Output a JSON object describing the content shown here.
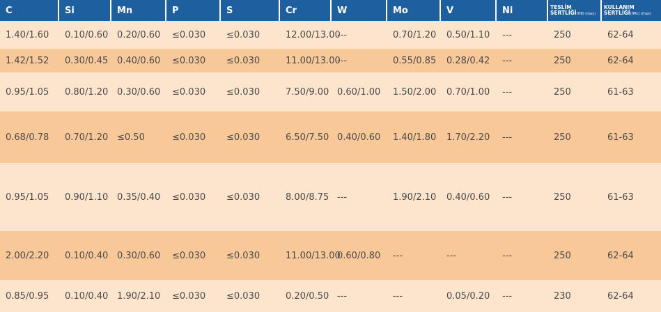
{
  "headers": [
    {
      "label": "C"
    },
    {
      "label": "Si"
    },
    {
      "label": "Mn"
    },
    {
      "label": "P"
    },
    {
      "label": "S"
    },
    {
      "label": "Cr"
    },
    {
      "label": "W"
    },
    {
      "label": "Mo"
    },
    {
      "label": "V"
    },
    {
      "label": "Ni"
    },
    {
      "line1": "TESLİM",
      "line2": "SERTLİĞİ",
      "unit": "(HB) (max)"
    },
    {
      "line1": "KULLANIM",
      "line2": "SERTLİĞİ",
      "unit": "(HRc) (max)"
    }
  ],
  "rows": [
    [
      "1.40/1.60",
      "0.10/0.60",
      "0.20/0.60",
      "≤0.030",
      "≤0.030",
      "12.00/13.00",
      "---",
      "0.70/1.20",
      "0.50/1.10",
      "---",
      "250",
      "62-64"
    ],
    [
      "1.42/1.52",
      "0.30/0.45",
      "0.40/0.60",
      "≤0.030",
      "≤0.030",
      "11.00/13.00",
      "---",
      "0.55/0.85",
      "0.28/0.42",
      "---",
      "250",
      "62-64"
    ],
    [
      "0.95/1.05",
      "0.80/1.20",
      "0.30/0.60",
      "≤0.030",
      "≤0.030",
      "7.50/9.00",
      "0.60/1.00",
      "1.50/2.00",
      "0.70/1.00",
      "---",
      "250",
      "61-63"
    ],
    [
      "0.68/0.78",
      "0.70/1.20",
      "≤0.50",
      "≤0.030",
      "≤0.030",
      "6.50/7.50",
      "0.40/0.60",
      "1.40/1.80",
      "1.70/2.20",
      "---",
      "250",
      "61-63"
    ],
    [
      "0.95/1.05",
      "0.90/1.10",
      "0.35/0.40",
      "≤0.030",
      "≤0.030",
      "8.00/8.75",
      "---",
      "1.90/2.10",
      "0.40/0.60",
      "---",
      "250",
      "61-63"
    ],
    [
      "2.00/2.20",
      "0.10/0.40",
      "0.30/0.60",
      "≤0.030",
      "≤0.030",
      "11.00/13.00",
      "0.60/0.80",
      "---",
      "---",
      "---",
      "250",
      "62-64"
    ],
    [
      "0.85/0.95",
      "0.10/0.40",
      "1.90/2.10",
      "≤0.030",
      "≤0.030",
      "0.20/0.50",
      "---",
      "---",
      "0.05/0.20",
      "---",
      "230",
      "62-64"
    ]
  ],
  "colors": {
    "header_bg": "#1e5fa0",
    "header_text": "#ffffff",
    "row_light": "#fde4cc",
    "row_dark": "#f9c898",
    "cell_text": "#4a4a4a"
  }
}
